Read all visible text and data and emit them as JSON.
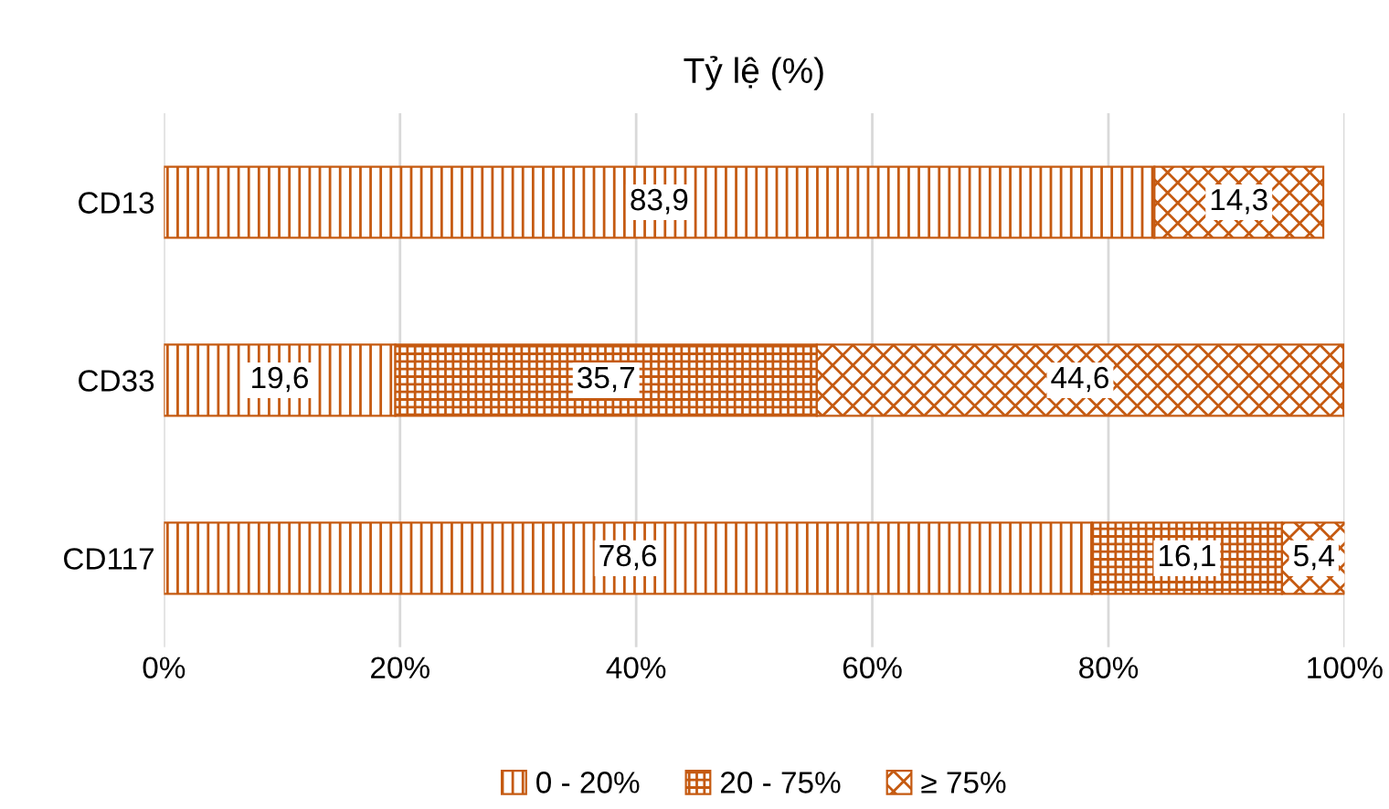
{
  "chart_data": {
    "type": "bar",
    "orientation": "horizontal",
    "stacked": true,
    "title": "Tỷ lệ (%)",
    "categories": [
      "CD13",
      "CD33",
      "CD117"
    ],
    "series": [
      {
        "name": "0 - 20%",
        "color": "#c55a11",
        "values": [
          83.9,
          19.6,
          78.6
        ],
        "value_labels": [
          "83,9",
          "19,6",
          "78,6"
        ]
      },
      {
        "name": "20 - 75%",
        "color": "#c55a11",
        "values": [
          null,
          35.7,
          16.1
        ],
        "value_labels": [
          null,
          "35,7",
          "16,1"
        ]
      },
      {
        "name": "≥ 75%",
        "color": "#c55a11",
        "values": [
          14.3,
          44.6,
          5.4
        ],
        "value_labels": [
          "14,3",
          "44,6",
          "5,4"
        ]
      }
    ],
    "xlim": [
      0,
      100
    ],
    "xticks": [
      {
        "value": 0,
        "label": "0%"
      },
      {
        "value": 20,
        "label": "20%"
      },
      {
        "value": 40,
        "label": "40%"
      },
      {
        "value": 60,
        "label": "60%"
      },
      {
        "value": 80,
        "label": "80%"
      },
      {
        "value": 100,
        "label": "100%"
      }
    ],
    "grid": "x",
    "legend": "bottom"
  }
}
